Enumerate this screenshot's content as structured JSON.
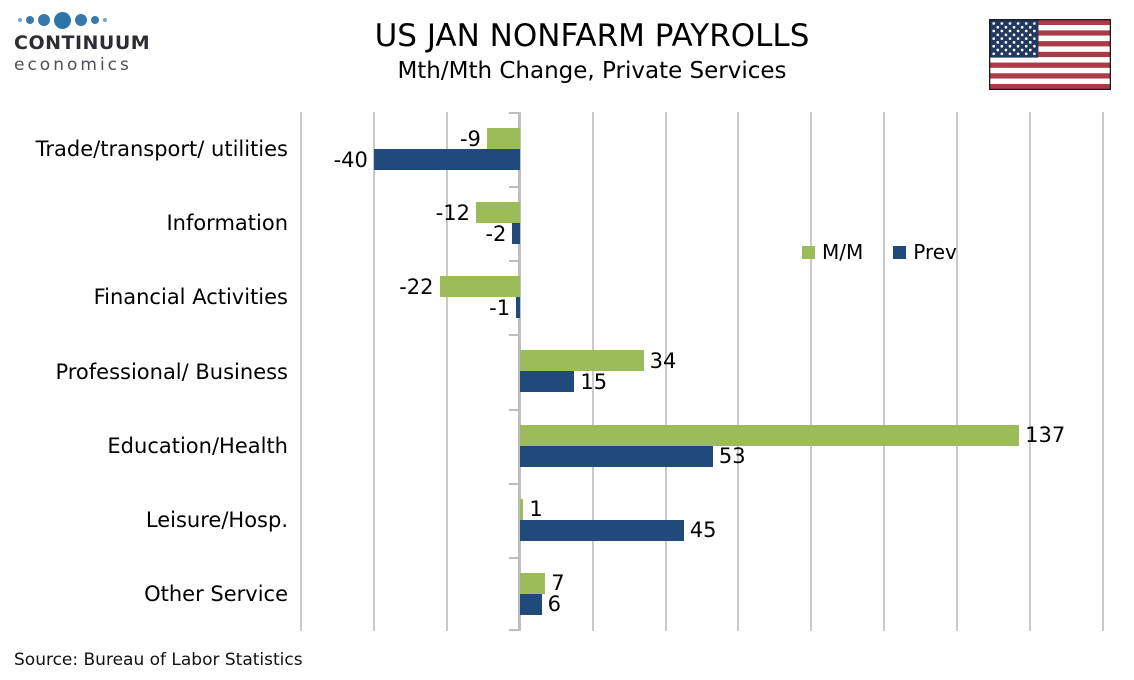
{
  "header": {
    "logo": {
      "line1": "CONTINUUM",
      "line2": "economics"
    },
    "title": "US JAN NONFARM PAYROLLS",
    "subtitle": "Mth/Mth Change, Private Services",
    "flag_icon": "us-flag-icon"
  },
  "chart_data": {
    "type": "bar",
    "orientation": "horizontal",
    "categories": [
      "Trade/transport/ utilities",
      "Information",
      "Financial Activities",
      "Professional/ Business",
      "Education/Health",
      "Leisure/Hosp.",
      "Other Service"
    ],
    "series": [
      {
        "name": "M/M",
        "color": "#9CBB59",
        "values": [
          -9,
          -12,
          -22,
          34,
          137,
          1,
          7
        ]
      },
      {
        "name": "Prev",
        "color": "#1F4A7A",
        "values": [
          -40,
          -2,
          -1,
          15,
          53,
          45,
          6
        ]
      }
    ],
    "xlim": [
      -60,
      160
    ],
    "x_tick_step": 20,
    "grid": true,
    "data_labels": true,
    "legend_position": "inside-top-right",
    "gridline_color": "#c9c9c9"
  },
  "footer": {
    "source": "Source: Bureau of Labor Statistics"
  },
  "colors": {
    "series_mm_green": "#9CBB59",
    "series_prev_blue": "#1F4A7A",
    "logo_blue": "#3879AC",
    "flag_red": "#AC3B47",
    "flag_navy": "#22395F"
  }
}
